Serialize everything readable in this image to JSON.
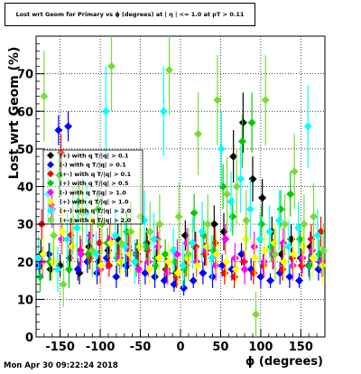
{
  "title": "Lost wrt Geom for Primary vs ϕ (degrees) at | η | <= 1.0 at pT > 0.11",
  "footer": "Mon Apr 30 09:22:24 2018",
  "chart_data": {
    "type": "scatter",
    "title": "Lost wrt Geom for Primary vs ϕ (degrees) at | η | <= 1.0 at pT > 0.11",
    "xlabel": "ϕ (degrees)",
    "ylabel": "Lost wrt Geom (%)",
    "xlim": [
      -180,
      180
    ],
    "ylim": [
      0,
      80
    ],
    "xticks": [
      -150,
      -100,
      -50,
      0,
      50,
      100,
      150
    ],
    "yticks": [
      0,
      10,
      20,
      30,
      40,
      50,
      60,
      70
    ],
    "grid": true,
    "legend_position": "upper-left",
    "legend": [
      {
        "label": "(+) with q T/|q| > 0.1",
        "color": "#000000"
      },
      {
        "label": "(-) with q T/|q| > 0.1",
        "color": "#0000ff"
      },
      {
        "label": "(+-) with q T/|q| > 0.1",
        "color": "#ff0000"
      },
      {
        "label": "(+) with q T/|q| > 0.5",
        "color": "#00cc00"
      },
      {
        "label": "(-) with q T/|q| > 1.0",
        "color": "#ff00ff"
      },
      {
        "label": "(+) with q T/|q| > 1.0",
        "color": "#ffff00"
      },
      {
        "label": "(+-) with q T/|q| > 2.0",
        "color": "#00ffff"
      },
      {
        "label": "(+-) with q T/|q| > 2.0",
        "color": "#77dd33"
      }
    ],
    "series": [
      {
        "color": "#000000",
        "x": [
          -174,
          -162,
          -150,
          -138,
          -126,
          -114,
          -102,
          -90,
          -78,
          -66,
          -54,
          -42,
          -30,
          -18,
          -6,
          6,
          18,
          30,
          42,
          54,
          66,
          78,
          90,
          102,
          114,
          126,
          138,
          150,
          162,
          174
        ],
        "y": [
          22,
          18,
          19,
          21,
          17,
          24,
          20,
          23,
          26,
          19,
          22,
          25,
          21,
          18,
          17,
          27,
          24,
          22,
          30,
          28,
          48,
          57,
          42,
          37,
          28,
          22,
          26,
          21,
          24,
          20
        ],
        "err": [
          4,
          3,
          3,
          4,
          3,
          4,
          3,
          4,
          4,
          3,
          4,
          4,
          3,
          3,
          3,
          4,
          4,
          3,
          5,
          5,
          7,
          8,
          6,
          5,
          4,
          3,
          4,
          3,
          4,
          3
        ]
      },
      {
        "color": "#0000ff",
        "x": [
          -176,
          -164,
          -152,
          -140,
          -128,
          -116,
          -104,
          -92,
          -80,
          -68,
          -56,
          -44,
          -32,
          -20,
          -8,
          4,
          16,
          28,
          40,
          52,
          64,
          76,
          88,
          100,
          112,
          124,
          136,
          148,
          160,
          172
        ],
        "y": [
          19,
          22,
          55,
          56,
          18,
          20,
          17,
          21,
          16,
          19,
          22,
          17,
          16,
          15,
          14,
          13,
          15,
          17,
          16,
          19,
          18,
          22,
          18,
          16,
          15,
          17,
          16,
          15,
          19,
          18
        ],
        "err": [
          3,
          3,
          4,
          4,
          3,
          3,
          3,
          3,
          3,
          3,
          3,
          3,
          3,
          2,
          2,
          2,
          2,
          3,
          3,
          3,
          3,
          3,
          3,
          3,
          2,
          3,
          3,
          2,
          3,
          3
        ]
      },
      {
        "color": "#ff0000",
        "x": [
          -173,
          -161,
          -149,
          -137,
          -125,
          -113,
          -101,
          -89,
          -77,
          -65,
          -53,
          -41,
          -29,
          -17,
          -5,
          7,
          19,
          31,
          43,
          55,
          67,
          79,
          91,
          103,
          115,
          127,
          139,
          151,
          163,
          175
        ],
        "y": [
          30,
          35,
          49,
          27,
          23,
          21,
          25,
          19,
          22,
          24,
          20,
          23,
          26,
          18,
          16,
          19,
          24,
          22,
          25,
          17,
          16,
          20,
          17,
          19,
          22,
          18,
          21,
          19,
          26,
          28
        ],
        "err": [
          4,
          4,
          5,
          4,
          4,
          3,
          4,
          3,
          3,
          4,
          3,
          4,
          4,
          3,
          3,
          3,
          4,
          3,
          4,
          3,
          3,
          3,
          3,
          3,
          4,
          3,
          3,
          3,
          4,
          4
        ]
      },
      {
        "color": "#00cc00",
        "x": [
          -175,
          -163,
          -151,
          -139,
          -127,
          -115,
          -103,
          -91,
          -79,
          -67,
          -55,
          -43,
          -31,
          -19,
          -7,
          5,
          17,
          29,
          41,
          53,
          65,
          77,
          89,
          101,
          113,
          125,
          137,
          149,
          161,
          173
        ],
        "y": [
          16,
          20,
          43,
          18,
          36,
          22,
          34,
          25,
          21,
          28,
          20,
          24,
          19,
          22,
          20,
          18,
          33,
          27,
          23,
          40,
          32,
          52,
          57,
          30,
          24,
          34,
          38,
          26,
          19,
          22
        ],
        "err": [
          4,
          5,
          6,
          5,
          5,
          4,
          5,
          4,
          4,
          5,
          4,
          4,
          4,
          4,
          4,
          4,
          5,
          4,
          4,
          6,
          5,
          7,
          8,
          5,
          4,
          5,
          6,
          4,
          4,
          4
        ]
      },
      {
        "color": "#ff00ff",
        "x": [
          -172,
          -160,
          -148,
          -136,
          -124,
          -112,
          -100,
          -88,
          -76,
          -64,
          -52,
          -40,
          -28,
          -16,
          -4,
          8,
          20,
          32,
          44,
          56,
          68,
          80,
          92,
          104,
          116,
          128,
          140,
          152,
          164,
          176
        ],
        "y": [
          20,
          34,
          26,
          24,
          22,
          27,
          18,
          26,
          21,
          23,
          18,
          20,
          24,
          17,
          22,
          25,
          20,
          23,
          19,
          26,
          21,
          18,
          24,
          20,
          22,
          25,
          19,
          21,
          23,
          20
        ],
        "err": [
          4,
          5,
          4,
          4,
          4,
          5,
          4,
          4,
          4,
          4,
          4,
          4,
          4,
          3,
          4,
          4,
          4,
          4,
          4,
          4,
          4,
          4,
          4,
          4,
          4,
          4,
          4,
          4,
          4,
          4
        ]
      },
      {
        "color": "#ffff00",
        "x": [
          -171,
          -159,
          -147,
          -135,
          -123,
          -111,
          -99,
          -87,
          -75,
          -63,
          -51,
          -39,
          -27,
          -15,
          -3,
          9,
          21,
          33,
          45,
          57,
          69,
          81,
          93,
          105,
          117,
          129,
          141,
          153,
          165,
          177
        ],
        "y": [
          22,
          20,
          28,
          24,
          34,
          31,
          19,
          25,
          20,
          22,
          24,
          18,
          21,
          20,
          17,
          21,
          19,
          24,
          22,
          20,
          18,
          26,
          21,
          23,
          25,
          20,
          22,
          24,
          21,
          19
        ],
        "err": [
          5,
          5,
          6,
          5,
          6,
          6,
          5,
          5,
          5,
          5,
          5,
          4,
          5,
          5,
          4,
          5,
          5,
          5,
          5,
          5,
          4,
          5,
          5,
          5,
          5,
          5,
          5,
          5,
          5,
          5
        ]
      },
      {
        "color": "#00ffff",
        "x": [
          -177,
          -165,
          -153,
          -141,
          -129,
          -117,
          -105,
          -93,
          -81,
          -69,
          -57,
          -45,
          -33,
          -21,
          -9,
          3,
          15,
          27,
          39,
          51,
          63,
          75,
          87,
          99,
          111,
          123,
          135,
          147,
          159,
          171
        ],
        "y": [
          21,
          38,
          18,
          26,
          29,
          33,
          22,
          60,
          27,
          24,
          20,
          31,
          26,
          60,
          23,
          19,
          25,
          28,
          21,
          50,
          36,
          42,
          34,
          26,
          28,
          31,
          24,
          29,
          56,
          27
        ],
        "err": [
          6,
          8,
          6,
          7,
          8,
          8,
          6,
          12,
          7,
          7,
          6,
          8,
          7,
          12,
          6,
          6,
          7,
          8,
          6,
          10,
          8,
          9,
          8,
          7,
          7,
          8,
          7,
          7,
          11,
          7
        ]
      },
      {
        "color": "#77dd33",
        "x": [
          -170,
          -158,
          -146,
          -134,
          -122,
          -110,
          -98,
          -86,
          -74,
          -62,
          -50,
          -38,
          -26,
          -14,
          -2,
          10,
          22,
          34,
          46,
          58,
          70,
          82,
          94,
          106,
          118,
          130,
          142,
          154,
          166,
          178
        ],
        "y": [
          64,
          27,
          14,
          31,
          33,
          23,
          30,
          72,
          25,
          28,
          32,
          28,
          30,
          71,
          32,
          22,
          54,
          30,
          63,
          38,
          40,
          31,
          6,
          63,
          22,
          30,
          44,
          30,
          32,
          23
        ],
        "err": [
          12,
          8,
          6,
          9,
          9,
          7,
          8,
          12,
          7,
          8,
          9,
          8,
          8,
          12,
          9,
          7,
          11,
          8,
          12,
          10,
          10,
          8,
          6,
          12,
          7,
          8,
          10,
          8,
          9,
          7
        ]
      }
    ]
  }
}
